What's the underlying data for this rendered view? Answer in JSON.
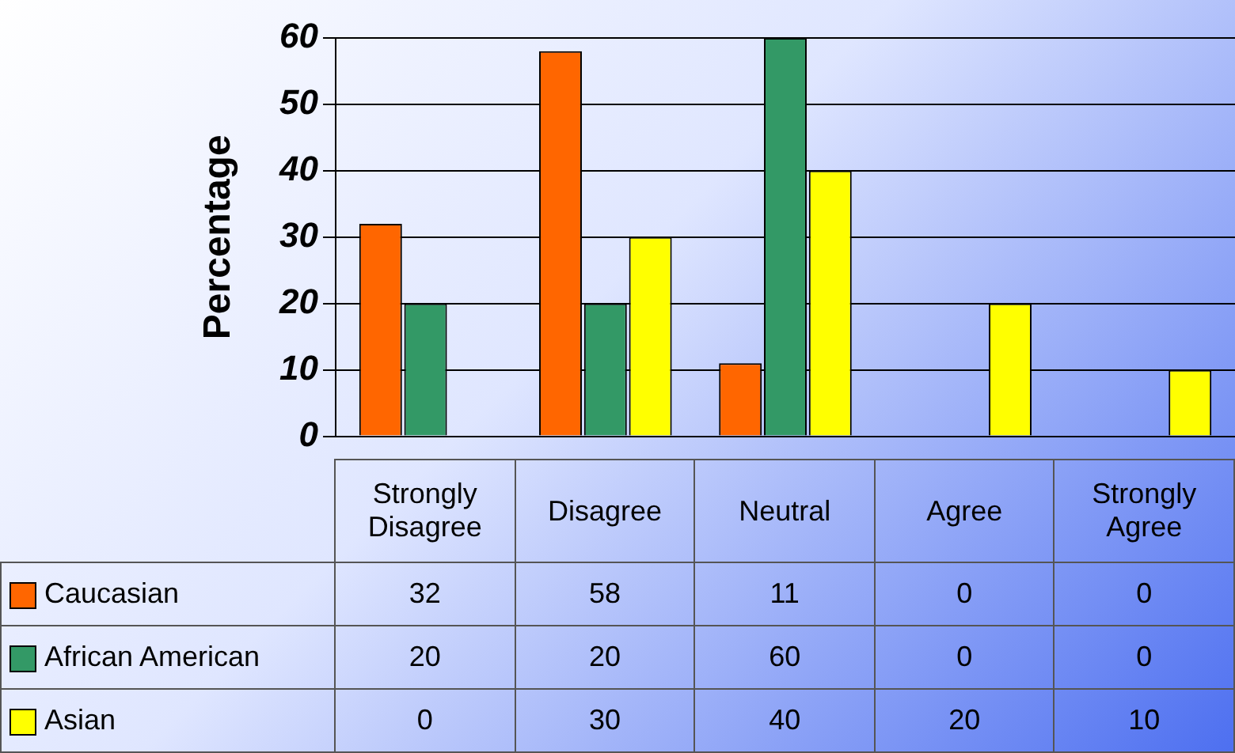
{
  "chart_data": {
    "type": "bar",
    "ylabel": "Percentage",
    "categories": [
      "Strongly Disagree",
      "Disagree",
      "Neutral",
      "Agree",
      "Strongly Agree"
    ],
    "series": [
      {
        "name": "Caucasian",
        "color": "#ff6600",
        "values": [
          32,
          58,
          11,
          0,
          0
        ]
      },
      {
        "name": "African American",
        "color": "#339966",
        "values": [
          20,
          20,
          60,
          0,
          0
        ]
      },
      {
        "name": "Asian",
        "color": "#ffff00",
        "values": [
          0,
          30,
          40,
          20,
          10
        ]
      }
    ],
    "ylim": [
      0,
      60
    ],
    "yticks": [
      0,
      10,
      20,
      30,
      40,
      50,
      60
    ],
    "grid": "y",
    "legend": "bottom",
    "data_labels": true
  }
}
